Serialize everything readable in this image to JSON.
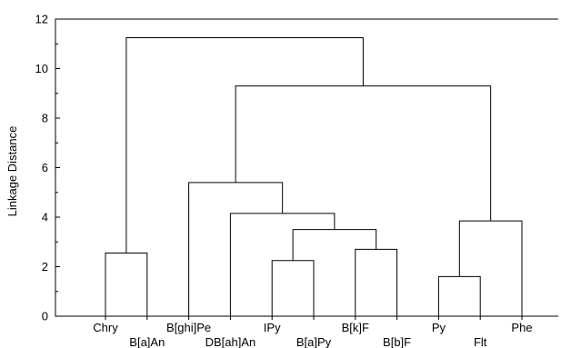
{
  "chart_data": {
    "type": "dendrogram",
    "title": "",
    "xlabel": "",
    "ylabel": "Linkage Distance",
    "ylim": [
      0,
      12
    ],
    "yticks": [
      0,
      2,
      4,
      6,
      8,
      10,
      12
    ],
    "grid": false,
    "leaves": [
      "Chry",
      "B[a]An",
      "B[ghi]Pe",
      "DB[ah]An",
      "IPy",
      "B[a]Py",
      "B[k]F",
      "B[b]F",
      "Py",
      "Flt",
      "Phe"
    ],
    "merges": [
      {
        "id": "c1",
        "left": "Chry",
        "right": "B[a]An",
        "height": 2.55
      },
      {
        "id": "c2",
        "left": "IPy",
        "right": "B[a]Py",
        "height": 2.25
      },
      {
        "id": "c3",
        "left": "B[k]F",
        "right": "B[b]F",
        "height": 2.7
      },
      {
        "id": "c4",
        "left": "c2",
        "right": "c3",
        "height": 3.5
      },
      {
        "id": "c5",
        "left": "DB[ah]An",
        "right": "c4",
        "height": 4.15
      },
      {
        "id": "c6",
        "left": "B[ghi]Pe",
        "right": "c5",
        "height": 5.4
      },
      {
        "id": "c7",
        "left": "Py",
        "right": "Flt",
        "height": 1.6
      },
      {
        "id": "c8",
        "left": "c7",
        "right": "Phe",
        "height": 3.85
      },
      {
        "id": "c9",
        "left": "c6",
        "right": "c8",
        "height": 9.3
      },
      {
        "id": "c10",
        "left": "c1",
        "right": "c9",
        "height": 11.25
      }
    ]
  }
}
